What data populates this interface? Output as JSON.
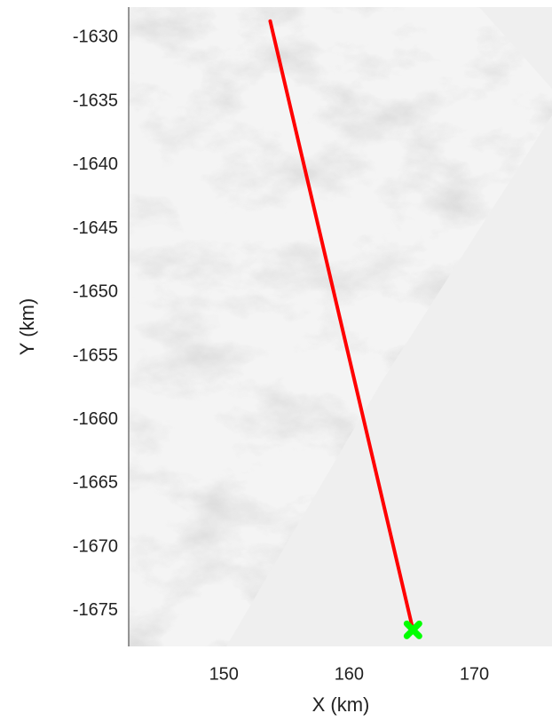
{
  "chart_data": {
    "type": "line",
    "xlabel": "X (km)",
    "ylabel": "Y (km)",
    "xlim": [
      142.4,
      176.2
    ],
    "xticks": [
      150,
      160,
      170
    ],
    "ylim": [
      -1677.8,
      -1627.6
    ],
    "yticks": [
      -1630,
      -1635,
      -1640,
      -1645,
      -1650,
      -1655,
      -1660,
      -1665,
      -1670,
      -1675
    ],
    "series": [
      {
        "mode": "line",
        "color": "#ff0000",
        "x": [
          153.7,
          165.1
        ],
        "values": [
          -1628.7,
          -1676.5
        ]
      },
      {
        "mode": "marker",
        "color": "#00ff00",
        "x": [
          165.1
        ],
        "values": [
          -1676.5
        ]
      }
    ]
  }
}
